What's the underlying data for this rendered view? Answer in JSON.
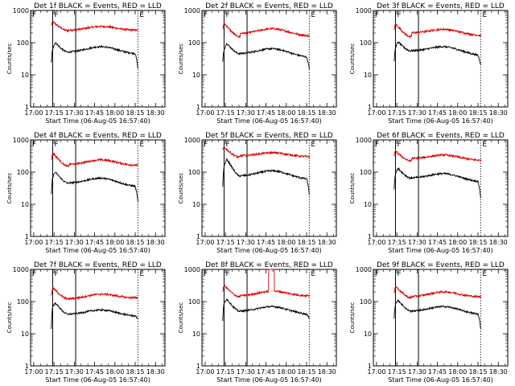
{
  "chart_data": {
    "type": "line",
    "shared": {
      "xlabel": "Start Time (06-Aug-05 16:57:40)",
      "ylabel": "Counts/sec",
      "yscale": "log",
      "ylim": [
        1,
        1000
      ],
      "y_ticks": [
        "1",
        "10",
        "100",
        "1000"
      ],
      "x_ticks": [
        "17:00",
        "17:15",
        "17:30",
        "17:45",
        "18:00",
        "18:15",
        "18:30"
      ],
      "xlim": [
        "16:57:40",
        "18:37:00"
      ],
      "grid": false,
      "legend": "none",
      "colors": {
        "events": "#000000",
        "lld": "#dd0000"
      },
      "markers": [
        {
          "label": "F",
          "time": "17:14",
          "style": "solid"
        },
        {
          "label": "",
          "time": "17:31",
          "style": "solid"
        },
        {
          "label": "E",
          "time": "18:17",
          "style": "dotted"
        }
      ],
      "left_label": "F"
    },
    "panels": [
      {
        "title": "Det 1f BLACK = Events, RED = LLD",
        "events": {
          "start": 25,
          "pre": 65,
          "peak": 100,
          "base": 50,
          "bump": 75,
          "end": 45,
          "drop": 15
        },
        "lld": {
          "start": 330,
          "peak": 450,
          "base": 240,
          "bump": 320,
          "end": 240,
          "dip": 235
        }
      },
      {
        "title": "Det 2f BLACK = Events, RED = LLD",
        "events": {
          "start": 25,
          "pre": 60,
          "peak": 95,
          "base": 45,
          "bump": 65,
          "end": 35,
          "drop": 15
        },
        "lld": {
          "start": 260,
          "peak": 400,
          "base": 190,
          "bump": 270,
          "end": 160,
          "dip": 150
        }
      },
      {
        "title": "Det 3f BLACK = Events, RED = LLD",
        "events": {
          "start": 25,
          "pre": 70,
          "peak": 105,
          "base": 55,
          "bump": 75,
          "end": 40,
          "drop": 20
        },
        "lld": {
          "start": 260,
          "peak": 380,
          "base": 200,
          "bump": 260,
          "end": 165,
          "dip": 150
        }
      },
      {
        "title": "Det 4f BLACK = Events, RED = LLD",
        "events": {
          "start": 20,
          "pre": 70,
          "peak": 100,
          "base": 45,
          "bump": 65,
          "end": 35,
          "drop": 12
        },
        "lld": {
          "start": 230,
          "peak": 400,
          "base": 170,
          "bump": 240,
          "end": 160,
          "dip": 150
        }
      },
      {
        "title": "Det 5f BLACK = Events, RED = LLD",
        "events": {
          "start": 35,
          "pre": 150,
          "peak": 250,
          "base": 75,
          "bump": 110,
          "end": 60,
          "drop": 20
        },
        "lld": {
          "start": 480,
          "peak": 600,
          "base": 320,
          "bump": 400,
          "end": 300,
          "dip": 290
        }
      },
      {
        "title": "Det 6f BLACK = Events, RED = LLD",
        "events": {
          "start": 30,
          "pre": 90,
          "peak": 130,
          "base": 65,
          "bump": 90,
          "end": 50,
          "drop": 15
        },
        "lld": {
          "start": 330,
          "peak": 450,
          "base": 260,
          "bump": 340,
          "end": 230,
          "dip": 220
        }
      },
      {
        "title": "Det 7f BLACK = Events, RED = LLD",
        "events": {
          "start": 15,
          "pre": 70,
          "peak": 90,
          "base": 40,
          "bump": 55,
          "end": 35,
          "drop": 30
        },
        "lld": {
          "start": 150,
          "peak": 270,
          "base": 120,
          "bump": 170,
          "end": 130,
          "dip": 120
        }
      },
      {
        "title": "Det 8f BLACK = Events, RED = LLD",
        "events": {
          "start": 25,
          "pre": 90,
          "peak": 120,
          "base": 50,
          "bump": 70,
          "end": 40,
          "drop": 30
        },
        "lld": {
          "start": 200,
          "peak": 320,
          "base": 150,
          "bump": 210,
          "end": 150,
          "dip": 140,
          "spike": [
            17.78,
            17.85,
            1000
          ]
        }
      },
      {
        "title": "Det 9f BLACK = Events, RED = LLD",
        "events": {
          "start": 30,
          "pre": 85,
          "peak": 110,
          "base": 50,
          "bump": 70,
          "end": 40,
          "drop": 15
        },
        "lld": {
          "start": 190,
          "peak": 300,
          "base": 140,
          "bump": 200,
          "end": 140,
          "dip": 130
        }
      }
    ]
  }
}
